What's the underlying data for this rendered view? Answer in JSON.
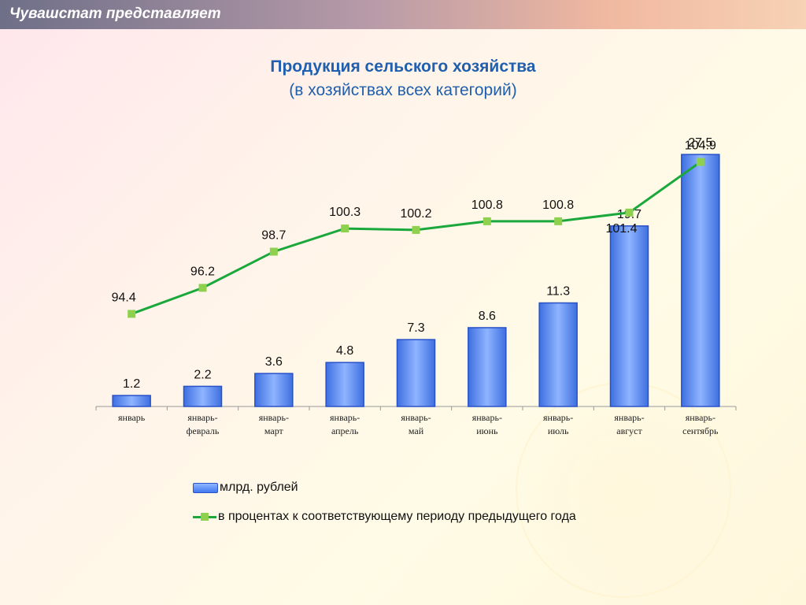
{
  "header": {
    "text": "Чувашстат представляет"
  },
  "chart_data": {
    "type": "bar",
    "title": "Продукция сельского хозяйства",
    "subtitle": "(в хозяйствах всех категорий)",
    "categories": [
      [
        "январь"
      ],
      [
        "январь-",
        "февраль"
      ],
      [
        "январь-",
        "март"
      ],
      [
        "январь-",
        "апрель"
      ],
      [
        "январь-",
        "май"
      ],
      [
        "январь-",
        "июнь"
      ],
      [
        "январь-",
        "июль"
      ],
      [
        "январь-",
        "август"
      ],
      [
        "январь-",
        "сентябрь"
      ]
    ],
    "series": [
      {
        "name": "млрд. рублей",
        "type": "bar",
        "values": [
          1.2,
          2.2,
          3.6,
          4.8,
          7.3,
          8.6,
          11.3,
          19.7,
          27.5
        ],
        "color": "#4a7ff0"
      },
      {
        "name": "в процентах к соответствующему периоду предыдущего года",
        "type": "line",
        "values": [
          94.4,
          96.2,
          98.7,
          100.3,
          100.2,
          100.8,
          100.8,
          101.4,
          104.9
        ],
        "color": "#1aa83c",
        "marker_color": "#8fd14f"
      }
    ],
    "bar_axis_range": [
      0,
      30
    ],
    "line_axis_range": [
      88,
      107
    ],
    "grid": false,
    "legend_position": "bottom-left"
  }
}
